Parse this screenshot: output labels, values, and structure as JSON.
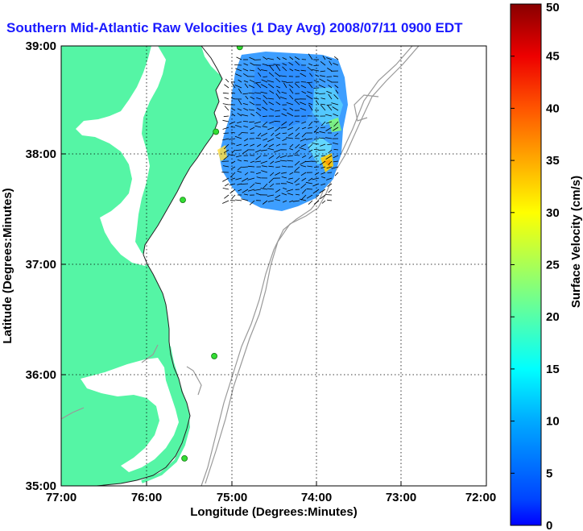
{
  "figure": {
    "title": "Southern Mid-Atlantic Raw Velocities (1 Day Avg) 2008/07/11 0900 EDT",
    "xlabel": "Longitude (Degrees:Minutes)",
    "ylabel": "Latitude (Degrees:Minutes)",
    "x_ticks": [
      "77:00",
      "76:00",
      "75:00",
      "74:00",
      "73:00",
      "72:00"
    ],
    "y_ticks": [
      "39:00",
      "38:00",
      "37:00",
      "36:00",
      "35:00"
    ]
  },
  "colorbar": {
    "label": "Surface Velocity (cm/s)",
    "ticks": [
      "50",
      "45",
      "40",
      "35",
      "30",
      "25",
      "20",
      "15",
      "10",
      "5",
      "0"
    ],
    "min": 0,
    "max": 50
  },
  "colors": {
    "land": "#55f5a5",
    "ocean": "#ffffff",
    "bathymetry": "#999999",
    "station": "#33dd33",
    "title": "#1a1aff"
  },
  "chart_data": {
    "type": "heatmap",
    "x_range": [
      -77,
      -72
    ],
    "y_range": [
      35,
      39
    ],
    "grid": true,
    "colorscale": "jet",
    "stations": [
      {
        "lon": -74.9,
        "lat": 38.99
      },
      {
        "lon": -75.18,
        "lat": 38.22
      },
      {
        "lon": -75.57,
        "lat": 37.6
      },
      {
        "lon": -75.2,
        "lat": 36.18
      },
      {
        "lon": -75.55,
        "lat": 35.25
      }
    ]
  }
}
